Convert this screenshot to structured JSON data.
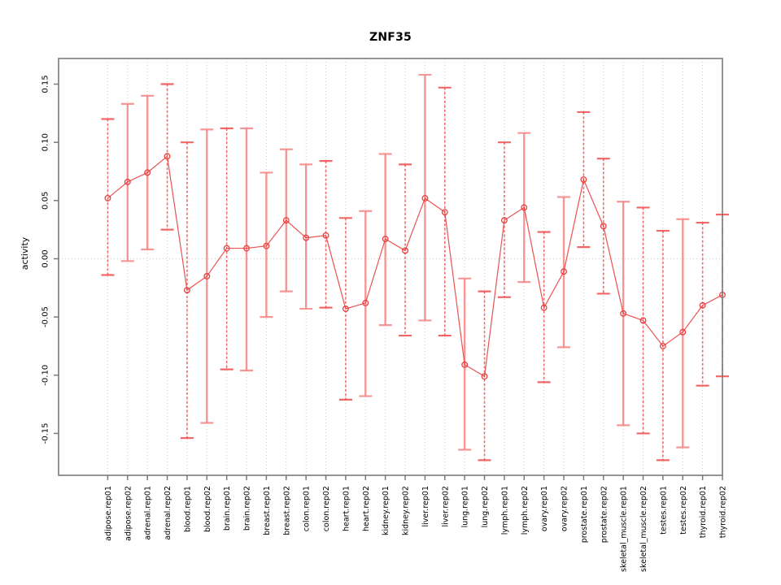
{
  "page": {
    "background": "#ffffff"
  },
  "chart_data": {
    "type": "line",
    "title": "ZNF35",
    "xlabel": "",
    "ylabel": "activity",
    "ylim": [
      -0.186,
      0.172
    ],
    "yticks": [
      0.15,
      0.1,
      0.05,
      0.0,
      -0.05,
      -0.1,
      -0.15
    ],
    "ytick_labels": [
      "0.15",
      "0.10",
      "0.05",
      "0.00",
      "-0.05",
      "-0.10",
      "-0.15"
    ],
    "grid": "vertical-dotted-per-category",
    "zero_line": true,
    "legend": "none",
    "marker": "open-circle",
    "colors": {
      "series": "#e93f3f",
      "errorbar_solid": "#f48585",
      "errorbar_dashed": "#ee4b4b",
      "grid": "#c9c9c9",
      "frame": "#7a7a7a",
      "text": "#000000"
    },
    "categories": [
      "adipose.rep01",
      "adipose.rep02",
      "adrenal.rep01",
      "adrenal.rep02",
      "blood.rep01",
      "blood.rep02",
      "brain.rep01",
      "brain.rep02",
      "breast.rep01",
      "breast.rep02",
      "colon.rep01",
      "colon.rep02",
      "heart.rep01",
      "heart.rep02",
      "kidney.rep01",
      "kidney.rep02",
      "liver.rep01",
      "liver.rep02",
      "lung.rep01",
      "lung.rep02",
      "lymph.rep01",
      "lymph.rep02",
      "ovary.rep01",
      "ovary.rep02",
      "prostate.rep01",
      "prostate.rep02",
      "skeletal_muscle.rep01",
      "skeletal_muscle.rep02",
      "testes.rep01",
      "testes.rep02",
      "thyroid.rep01",
      "thyroid.rep02"
    ],
    "series": [
      {
        "name": "activity",
        "values": [
          0.052,
          0.066,
          0.074,
          0.088,
          -0.027,
          -0.015,
          0.009,
          0.009,
          0.011,
          0.033,
          0.018,
          0.02,
          -0.043,
          -0.038,
          0.017,
          0.007,
          0.052,
          0.04,
          -0.091,
          -0.101,
          0.033,
          0.044,
          -0.042,
          -0.011,
          0.068,
          0.028,
          -0.047,
          -0.053,
          -0.075,
          -0.063,
          -0.04,
          -0.031
        ],
        "upper": [
          0.12,
          0.133,
          0.14,
          0.15,
          0.1,
          0.111,
          0.112,
          0.112,
          0.074,
          0.094,
          0.081,
          0.084,
          0.035,
          0.041,
          0.09,
          0.081,
          0.158,
          0.147,
          -0.017,
          -0.028,
          0.1,
          0.108,
          0.023,
          0.053,
          0.126,
          0.086,
          0.049,
          0.044,
          0.024,
          0.034,
          0.031,
          0.038
        ],
        "lower": [
          -0.014,
          -0.002,
          0.008,
          0.025,
          -0.154,
          -0.141,
          -0.095,
          -0.096,
          -0.05,
          -0.028,
          -0.043,
          -0.042,
          -0.121,
          -0.118,
          -0.057,
          -0.066,
          -0.053,
          -0.066,
          -0.164,
          -0.173,
          -0.033,
          -0.02,
          -0.106,
          -0.076,
          0.01,
          -0.03,
          -0.143,
          -0.15,
          -0.173,
          -0.162,
          -0.109,
          -0.101
        ],
        "dashed_bar": [
          true,
          false,
          false,
          true,
          true,
          false,
          true,
          false,
          false,
          false,
          false,
          true,
          true,
          false,
          false,
          true,
          false,
          true,
          false,
          true,
          true,
          false,
          true,
          false,
          true,
          true,
          false,
          true,
          true,
          false,
          true,
          true
        ]
      }
    ]
  }
}
